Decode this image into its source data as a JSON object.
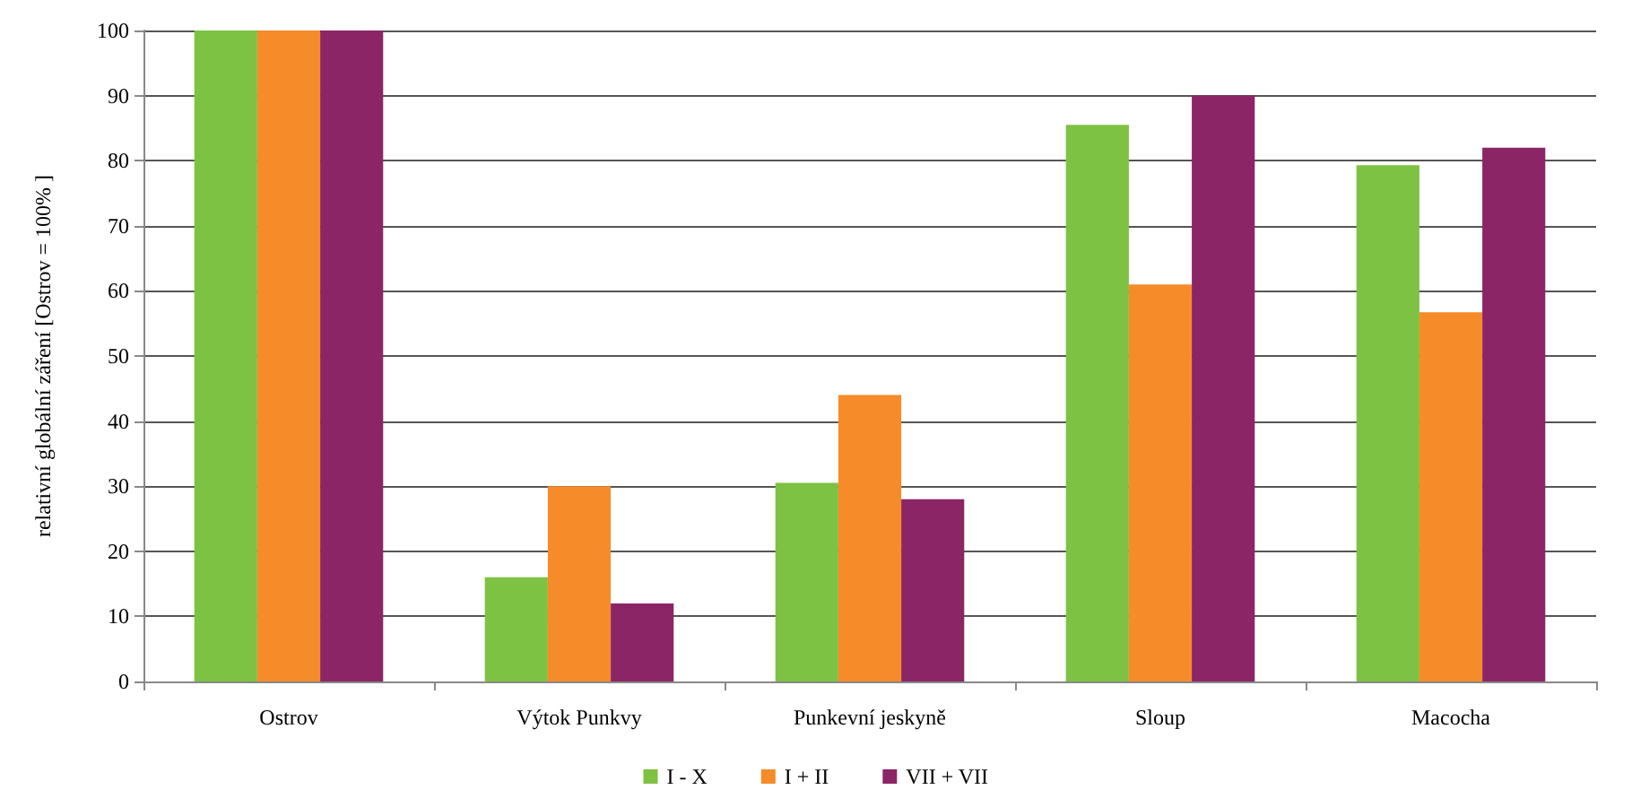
{
  "chart_data": {
    "type": "bar",
    "ylabel": "relativní globální záření [Ostrov = 100% ]",
    "categories": [
      "Ostrov",
      "Výtok Punkvy",
      "Punkevní jeskyně",
      "Sloup",
      "Macocha"
    ],
    "series": [
      {
        "name": "I - X",
        "color": "#7dc242",
        "values": [
          100,
          16,
          30.5,
          85.5,
          79.3
        ]
      },
      {
        "name": "I + II",
        "color": "#f68b2a",
        "values": [
          100,
          30,
          44,
          61,
          56.7
        ]
      },
      {
        "name": "VII + VII",
        "color": "#8b2565",
        "values": [
          100,
          12,
          28,
          90,
          82
        ]
      }
    ],
    "ylim": [
      0,
      100
    ],
    "yticks": [
      0,
      10,
      20,
      30,
      40,
      50,
      60,
      70,
      80,
      90,
      100
    ],
    "grid": "y",
    "legend": "bottom"
  }
}
